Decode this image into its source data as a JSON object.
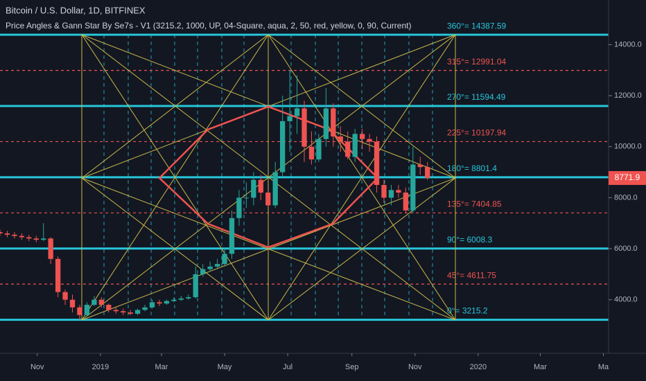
{
  "chart_data": {
    "type": "candlestick",
    "title": "Bitcoin / U.S. Dollar, 1D, BITFINEX",
    "subtitle": "Price Angles & Gann Star By Se7s - V1  (3215.2, 1000, UP, 04-Square, aqua, 2, 50, red, yellow, 0, 90, Current)",
    "x": [
      -5,
      2,
      9,
      16,
      23,
      30,
      37,
      44,
      51,
      58,
      65,
      72,
      79,
      86,
      93,
      100,
      107,
      114,
      121,
      128,
      135,
      142,
      149,
      156,
      163,
      170,
      177,
      184,
      191,
      198,
      205,
      212,
      219,
      226,
      233,
      240,
      247,
      254,
      261,
      268,
      275,
      282,
      289,
      296,
      303,
      310,
      317,
      324,
      331,
      338,
      345,
      352,
      359,
      366,
      373,
      380,
      387,
      394,
      401,
      408
    ],
    "open": [
      6650,
      6600,
      6550,
      6500,
      6450,
      6400,
      6350,
      6400,
      5600,
      4300,
      4000,
      3700,
      3400,
      3800,
      4000,
      3800,
      3600,
      3550,
      3500,
      3450,
      3600,
      3700,
      3900,
      3850,
      3950,
      4000,
      4050,
      4100,
      5000,
      5200,
      5300,
      5400,
      5800,
      7200,
      8000,
      8000,
      8700,
      8200,
      7700,
      9000,
      11000,
      11200,
      11500,
      10000,
      9500,
      10300,
      11500,
      10400,
      10200,
      9600,
      10500,
      10300,
      10200,
      8500,
      8000,
      8300,
      8200,
      7500,
      9300,
      9200
    ],
    "high": [
      6750,
      6700,
      6650,
      6600,
      6550,
      6500,
      7000,
      6450,
      5700,
      4400,
      4200,
      3800,
      3900,
      4150,
      4100,
      3850,
      3700,
      3650,
      3600,
      3650,
      3800,
      4000,
      4000,
      4000,
      4100,
      4150,
      4200,
      5300,
      5400,
      5500,
      5600,
      6000,
      7500,
      8300,
      8600,
      9000,
      8900,
      8300,
      9400,
      12000,
      13000,
      12800,
      11800,
      10600,
      10500,
      12300,
      11700,
      10800,
      10600,
      10700,
      10700,
      10500,
      10400,
      8700,
      8500,
      8500,
      8400,
      10000,
      9600,
      9400
    ],
    "low": [
      6500,
      6450,
      6400,
      6350,
      6300,
      6250,
      6300,
      5400,
      4100,
      3800,
      3500,
      3215,
      3350,
      3750,
      3700,
      3500,
      3450,
      3400,
      3400,
      3400,
      3550,
      3650,
      3750,
      3800,
      3900,
      3950,
      4000,
      4050,
      4900,
      5100,
      5200,
      5300,
      5600,
      6900,
      7600,
      7700,
      7900,
      7600,
      7600,
      8800,
      9800,
      10500,
      9400,
      9300,
      9400,
      10000,
      10000,
      9800,
      9500,
      9400,
      9900,
      9800,
      8200,
      7800,
      7700,
      8000,
      7400,
      7400,
      8900,
      8700
    ],
    "close": [
      6600,
      6550,
      6500,
      6450,
      6400,
      6350,
      6400,
      5600,
      4300,
      4000,
      3700,
      3400,
      3800,
      4000,
      3800,
      3600,
      3550,
      3500,
      3450,
      3600,
      3700,
      3900,
      3850,
      3950,
      4000,
      4050,
      4100,
      5000,
      5200,
      5300,
      5400,
      5800,
      7200,
      8000,
      8000,
      8700,
      8200,
      7700,
      9000,
      11000,
      11200,
      11500,
      10000,
      9500,
      10300,
      11500,
      10400,
      10200,
      9600,
      10500,
      10300,
      10200,
      8500,
      8000,
      8300,
      8200,
      7500,
      9300,
      9200,
      8771.9
    ],
    "up_color": "#26a69a",
    "down_color": "#ef5350",
    "levels": [
      {
        "label": "360°= 14387.59",
        "value": 14387.59,
        "color": "#26c6da"
      },
      {
        "label": "315°= 12991.04",
        "value": 12991.04,
        "color": "#ef5350"
      },
      {
        "label": "270°= 11594.49",
        "value": 11594.49,
        "color": "#26c6da"
      },
      {
        "label": "225°= 10197.94",
        "value": 10197.94,
        "color": "#ef5350"
      },
      {
        "label": "180°= 8801.4",
        "value": 8801.4,
        "color": "#26c6da"
      },
      {
        "label": "135°= 7404.85",
        "value": 7404.85,
        "color": "#ef5350"
      },
      {
        "label": "90°= 6008.3",
        "value": 6008.3,
        "color": "#26c6da"
      },
      {
        "label": "45°= 4611.75",
        "value": 4611.75,
        "color": "#ef5350"
      },
      {
        "label": "0°= 3215.2",
        "value": 3215.2,
        "color": "#26c6da"
      }
    ],
    "xlim": [
      -5,
      583
    ],
    "xticks": [
      {
        "value": 31,
        "label": "Nov"
      },
      {
        "value": 92,
        "label": "2019"
      },
      {
        "value": 151,
        "label": "Mar"
      },
      {
        "value": 212,
        "label": "May"
      },
      {
        "value": 273,
        "label": "Jul"
      },
      {
        "value": 335,
        "label": "Sep"
      },
      {
        "value": 396,
        "label": "Nov"
      },
      {
        "value": 457,
        "label": "2020"
      },
      {
        "value": 517,
        "label": "Mar"
      },
      {
        "value": 578,
        "label": "Ma"
      }
    ],
    "ylim": [
      1900,
      15750
    ],
    "yticks": [
      {
        "value": 4000,
        "label": "4000.0"
      },
      {
        "value": 6000,
        "label": "6000.0"
      },
      {
        "value": 8000,
        "label": "8000.0"
      },
      {
        "value": 10000,
        "label": "10000.0"
      },
      {
        "value": 12000,
        "label": "12000.0"
      },
      {
        "value": 14000,
        "label": "14000.0"
      }
    ]
  }
}
